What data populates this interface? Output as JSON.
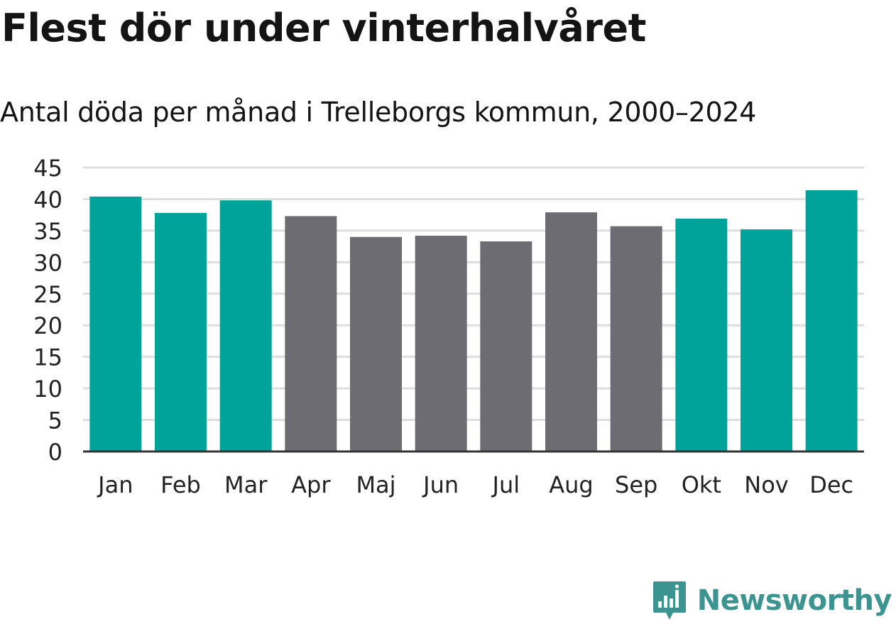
{
  "chart_data": {
    "type": "bar",
    "title": "Flest dör under vinterhalvåret",
    "subtitle": "Antal döda per månad i Trelleborgs kommun, 2000–2024",
    "categories": [
      "Jan",
      "Feb",
      "Mar",
      "Apr",
      "Maj",
      "Jun",
      "Jul",
      "Aug",
      "Sep",
      "Okt",
      "Nov",
      "Dec"
    ],
    "values": [
      40.4,
      37.8,
      39.8,
      37.3,
      34.0,
      34.2,
      33.3,
      37.9,
      35.7,
      36.9,
      35.2,
      41.4
    ],
    "highlight": [
      true,
      true,
      true,
      false,
      false,
      false,
      false,
      false,
      false,
      true,
      true,
      true
    ],
    "ylim": [
      0,
      45
    ],
    "yticks": [
      "0",
      "5",
      "10",
      "15",
      "20",
      "25",
      "30",
      "35",
      "40",
      "45"
    ],
    "xlabel": "",
    "ylabel": "",
    "grid": true,
    "colors": {
      "highlight": "#00a39a",
      "default": "#6d6c72",
      "grid": "#dedede",
      "axis": "#333333"
    }
  },
  "brand": {
    "name": "Newsworthy",
    "icon": "newsworthy-logo-icon",
    "color": "#3c9490"
  }
}
